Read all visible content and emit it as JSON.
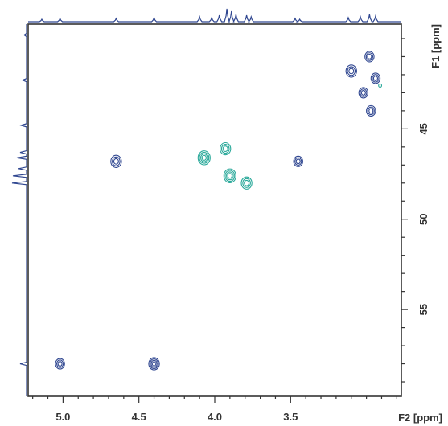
{
  "chart_data": {
    "type": "contour",
    "title": "",
    "xlabel": "F2 [ppm]",
    "ylabel": "F1 [ppm]",
    "x_axis": {
      "label": "F2 [ppm]",
      "range": [
        5.23,
        2.77
      ],
      "reversed": true,
      "major_ticks": [
        5.0,
        4.5,
        4.0,
        3.5
      ],
      "major_tick_labels": [
        "5.0",
        "4.5",
        "4.0",
        "3.5"
      ],
      "minor_tick_step": 0.1
    },
    "y_axis": {
      "label": "F1 [ppm]",
      "range": [
        39.2,
        59.8
      ],
      "reversed": true,
      "position": "right",
      "major_ticks": [
        45,
        50,
        55
      ],
      "major_tick_labels": [
        "45",
        "50",
        "55"
      ],
      "minor_tick_step": 1
    },
    "grid": false,
    "colors": {
      "positive": "#2f4690",
      "negative": "#2aa99a",
      "axis": "#333333",
      "projection": "#2f4690"
    },
    "cross_peaks": [
      {
        "f2": 5.02,
        "f1": 58.0,
        "sign": "positive",
        "size": 0.03,
        "levels": 3
      },
      {
        "f2": 4.4,
        "f1": 58.0,
        "sign": "positive",
        "size": 0.035,
        "levels": 4
      },
      {
        "f2": 4.65,
        "f1": 46.8,
        "sign": "positive",
        "size": 0.035,
        "levels": 3
      },
      {
        "f2": 3.45,
        "f1": 46.8,
        "sign": "positive",
        "size": 0.03,
        "levels": 3
      },
      {
        "f2": 4.07,
        "f1": 46.6,
        "sign": "negative",
        "size": 0.04,
        "levels": 4
      },
      {
        "f2": 3.93,
        "f1": 46.1,
        "sign": "negative",
        "size": 0.035,
        "levels": 3
      },
      {
        "f2": 3.9,
        "f1": 47.6,
        "sign": "negative",
        "size": 0.04,
        "levels": 4
      },
      {
        "f2": 3.79,
        "f1": 48.0,
        "sign": "negative",
        "size": 0.035,
        "levels": 3
      },
      {
        "f2": 3.1,
        "f1": 41.8,
        "sign": "positive",
        "size": 0.035,
        "levels": 3
      },
      {
        "f2": 3.02,
        "f1": 43.0,
        "sign": "positive",
        "size": 0.03,
        "levels": 3
      },
      {
        "f2": 2.98,
        "f1": 41.0,
        "sign": "positive",
        "size": 0.03,
        "levels": 3
      },
      {
        "f2": 2.94,
        "f1": 42.2,
        "sign": "positive",
        "size": 0.03,
        "levels": 3
      },
      {
        "f2": 2.97,
        "f1": 44.0,
        "sign": "positive",
        "size": 0.03,
        "levels": 3
      },
      {
        "f2": 2.91,
        "f1": 42.6,
        "sign": "negative",
        "size": 0.01,
        "levels": 1
      }
    ],
    "f2_projection": [
      {
        "x": 5.14,
        "h": 3
      },
      {
        "x": 5.02,
        "h": 4
      },
      {
        "x": 4.65,
        "h": 4
      },
      {
        "x": 4.4,
        "h": 5
      },
      {
        "x": 4.1,
        "h": 6
      },
      {
        "x": 4.02,
        "h": 5
      },
      {
        "x": 3.97,
        "h": 8
      },
      {
        "x": 3.92,
        "h": 16
      },
      {
        "x": 3.89,
        "h": 13
      },
      {
        "x": 3.86,
        "h": 9
      },
      {
        "x": 3.79,
        "h": 8
      },
      {
        "x": 3.76,
        "h": 6
      },
      {
        "x": 3.47,
        "h": 4
      },
      {
        "x": 3.44,
        "h": 3
      },
      {
        "x": 3.12,
        "h": 5
      },
      {
        "x": 3.04,
        "h": 6
      },
      {
        "x": 2.98,
        "h": 9
      },
      {
        "x": 2.94,
        "h": 7
      }
    ],
    "f1_projection": [
      {
        "y": 39.8,
        "w": 3
      },
      {
        "y": 42.3,
        "w": 5
      },
      {
        "y": 44.8,
        "w": 7
      },
      {
        "y": 46.3,
        "w": 8
      },
      {
        "y": 46.6,
        "w": 12
      },
      {
        "y": 47.2,
        "w": 10
      },
      {
        "y": 47.6,
        "w": 17
      },
      {
        "y": 48.0,
        "w": 18
      },
      {
        "y": 58.0,
        "w": 8
      }
    ]
  }
}
